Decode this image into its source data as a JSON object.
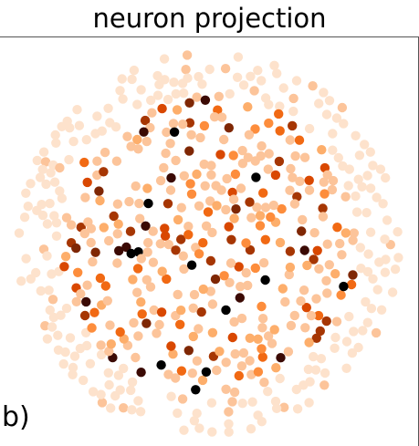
{
  "title": "neuron projection",
  "panel_label": "b)",
  "colors": {
    "palette": [
      "#fde2cc",
      "#fcc49a",
      "#fdae6b",
      "#fd8d3c",
      "#f16913",
      "#d94801",
      "#a63603",
      "#7f2704",
      "#3b0a04",
      "#000000"
    ],
    "frame": "#555555"
  },
  "chart_data": {
    "type": "scatter",
    "title": "neuron projection",
    "xlabel": "",
    "ylabel": "",
    "grid": false,
    "legend": "none",
    "colormap": "Oranges",
    "xlim": [
      -1,
      1
    ],
    "ylim": [
      -1,
      1
    ],
    "n_points": 560,
    "generator": {
      "seed": 20240517,
      "distribution": "disk",
      "radius": 1.0,
      "intensity_range": [
        0,
        1
      ],
      "outer_fade": true
    }
  }
}
